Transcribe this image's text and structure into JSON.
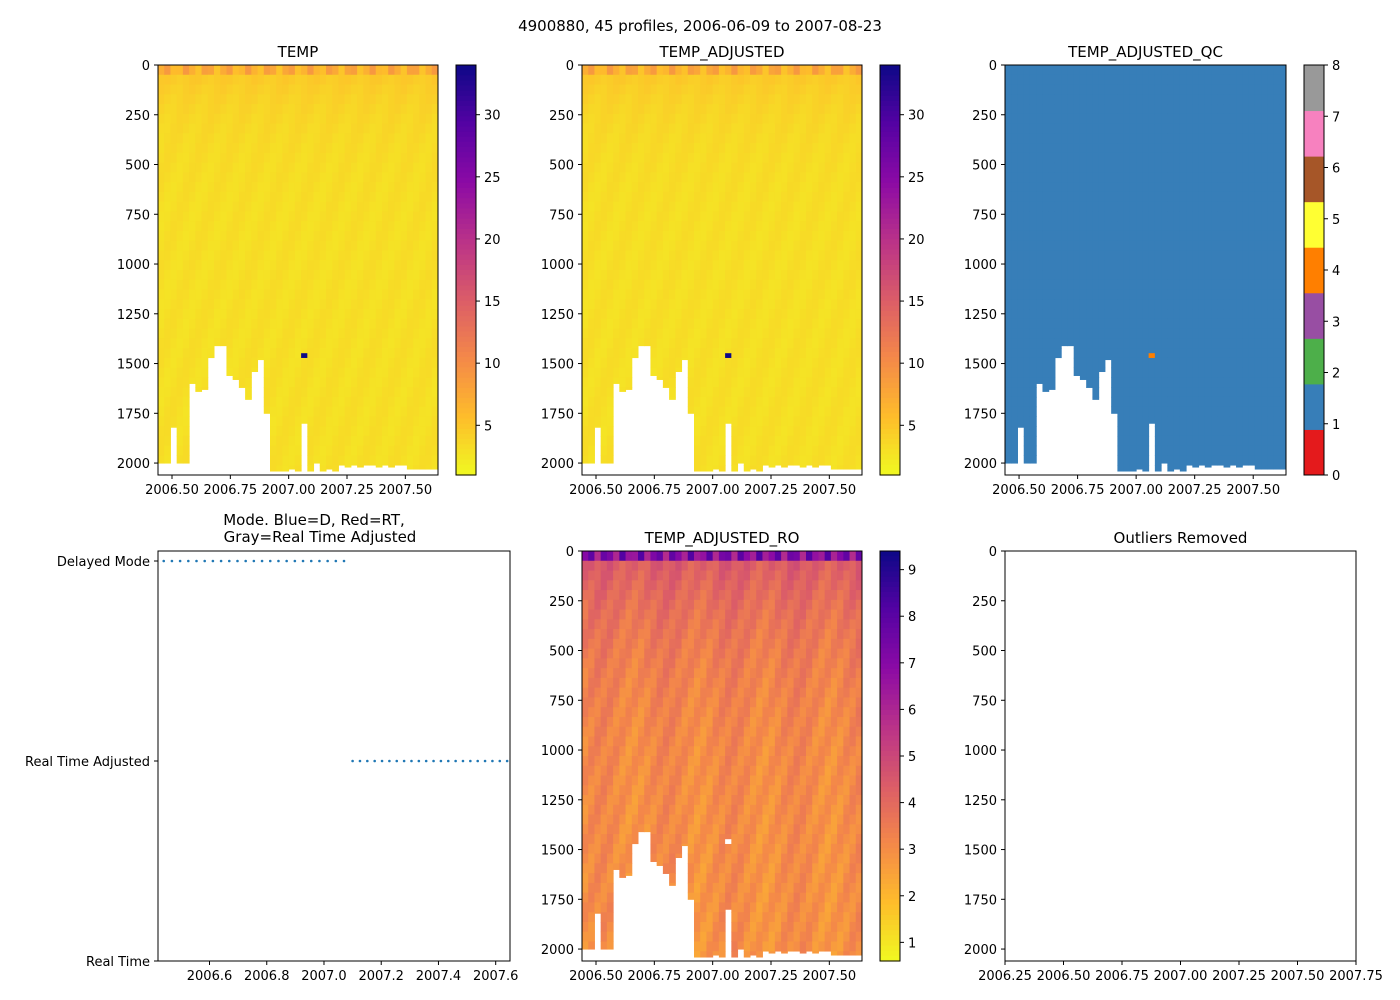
{
  "figure": {
    "title": "4900880, 45 profiles, 2006-06-09 to 2007-08-23"
  },
  "chart_data": [
    {
      "id": "temp",
      "type": "heatmap",
      "title": "TEMP",
      "xlim": [
        2006.44,
        2007.64
      ],
      "ylim": [
        2060,
        0
      ],
      "xticks": [
        2006.5,
        2006.75,
        2007.0,
        2007.25,
        2007.5
      ],
      "xtick_labels": [
        "2006.50",
        "2006.75",
        "2007.00",
        "2007.25",
        "2007.50"
      ],
      "yticks": [
        0,
        250,
        500,
        750,
        1000,
        1250,
        1500,
        1750,
        2000
      ],
      "ytick_labels": [
        "0",
        "250",
        "500",
        "750",
        "1000",
        "1250",
        "1500",
        "1750",
        "2000"
      ],
      "colorbar": {
        "colormap": "plasma_r",
        "range": [
          1,
          34
        ],
        "ticks": [
          5,
          10,
          15,
          20,
          25,
          30
        ],
        "tick_labels": [
          "5",
          "10",
          "15",
          "20",
          "25",
          "30"
        ]
      },
      "profile_bottom_depths": [
        2000,
        2000,
        1820,
        2000,
        2000,
        1600,
        1640,
        1630,
        1470,
        1410,
        1410,
        1560,
        1580,
        1620,
        1680,
        1540,
        1480,
        1750,
        2040,
        2040,
        2040,
        2030,
        2040,
        1800,
        2040,
        2000,
        2040,
        2030,
        2040,
        2010,
        2020,
        2010,
        2020,
        2010,
        2010,
        2020,
        2010,
        2020,
        2010,
        2010,
        2030,
        2030,
        2030,
        2030,
        2030
      ],
      "outlier": {
        "depth": 1460,
        "value": 34,
        "profile_index": 23
      },
      "surface_value": 7,
      "deep_value": 3
    },
    {
      "id": "temp_adj",
      "type": "heatmap",
      "title": "TEMP_ADJUSTED",
      "xlim": [
        2006.44,
        2007.64
      ],
      "ylim": [
        2060,
        0
      ],
      "xticks": [
        2006.5,
        2006.75,
        2007.0,
        2007.25,
        2007.5
      ],
      "xtick_labels": [
        "2006.50",
        "2006.75",
        "2007.00",
        "2007.25",
        "2007.50"
      ],
      "yticks": [
        0,
        250,
        500,
        750,
        1000,
        1250,
        1500,
        1750,
        2000
      ],
      "ytick_labels": [
        "0",
        "250",
        "500",
        "750",
        "1000",
        "1250",
        "1500",
        "1750",
        "2000"
      ],
      "colorbar": {
        "colormap": "plasma_r",
        "range": [
          1,
          34
        ],
        "ticks": [
          5,
          10,
          15,
          20,
          25,
          30
        ],
        "tick_labels": [
          "5",
          "10",
          "15",
          "20",
          "25",
          "30"
        ]
      },
      "outlier": {
        "depth": 1460,
        "value": 34,
        "profile_index": 23
      },
      "surface_value": 7,
      "deep_value": 3
    },
    {
      "id": "qc",
      "type": "heatmap",
      "title": "TEMP_ADJUSTED_QC",
      "xlim": [
        2006.44,
        2007.64
      ],
      "ylim": [
        2060,
        0
      ],
      "xticks": [
        2006.5,
        2006.75,
        2007.0,
        2007.25,
        2007.5
      ],
      "xtick_labels": [
        "2006.50",
        "2006.75",
        "2007.00",
        "2007.25",
        "2007.50"
      ],
      "yticks": [
        0,
        250,
        500,
        750,
        1000,
        1250,
        1500,
        1750,
        2000
      ],
      "ytick_labels": [
        "0",
        "250",
        "500",
        "750",
        "1000",
        "1250",
        "1500",
        "1750",
        "2000"
      ],
      "fill_value": 1,
      "outlier": {
        "depth": 1460,
        "value": 4,
        "profile_index": 23
      },
      "colorbar": {
        "range": [
          0,
          8
        ],
        "ticks": [
          0,
          1,
          2,
          3,
          4,
          5,
          6,
          7,
          8
        ],
        "tick_labels": [
          "0",
          "1",
          "2",
          "3",
          "4",
          "5",
          "6",
          "7",
          "8"
        ],
        "colors": [
          "#e41a1c",
          "#377eb8",
          "#4daf4a",
          "#984ea3",
          "#ff7f00",
          "#ffff33",
          "#a65628",
          "#f781bf",
          "#999999"
        ]
      }
    },
    {
      "id": "mode",
      "type": "scatter",
      "title_lines": [
        "Mode. Blue=D, Red=RT,",
        "Gray=Real Time Adjusted"
      ],
      "xlim": [
        2006.42,
        2007.65
      ],
      "xticks": [
        2006.6,
        2006.8,
        2007.0,
        2007.2,
        2007.4,
        2007.6
      ],
      "xtick_labels": [
        "2006.6",
        "2006.8",
        "2007.0",
        "2007.2",
        "2007.4",
        "2007.6"
      ],
      "ylim": [
        0,
        2.05
      ],
      "yticks": [
        0,
        1,
        2
      ],
      "ytick_labels": [
        "Real Time",
        "Real Time Adjusted",
        "Delayed Mode"
      ],
      "series": [
        {
          "name": "Delayed Mode",
          "y": 2,
          "x_start": 2006.44,
          "x_end": 2007.07,
          "count": 23,
          "color": "#1f77b4"
        },
        {
          "name": "Real Time Adjusted",
          "y": 1,
          "x_start": 2007.1,
          "x_end": 2007.64,
          "count": 22,
          "color": "#1f77b4"
        }
      ]
    },
    {
      "id": "ro",
      "type": "heatmap",
      "title": "TEMP_ADJUSTED_RO",
      "xlim": [
        2006.44,
        2007.64
      ],
      "ylim": [
        2060,
        0
      ],
      "xticks": [
        2006.5,
        2006.75,
        2007.0,
        2007.25,
        2007.5
      ],
      "xtick_labels": [
        "2006.50",
        "2006.75",
        "2007.00",
        "2007.25",
        "2007.50"
      ],
      "yticks": [
        0,
        250,
        500,
        750,
        1000,
        1250,
        1500,
        1750,
        2000
      ],
      "ytick_labels": [
        "0",
        "250",
        "500",
        "750",
        "1000",
        "1250",
        "1500",
        "1750",
        "2000"
      ],
      "colorbar": {
        "colormap": "plasma_r",
        "range": [
          0.6,
          9.4
        ],
        "ticks": [
          1,
          2,
          3,
          4,
          5,
          6,
          7,
          8,
          9
        ],
        "tick_labels": [
          "1",
          "2",
          "3",
          "4",
          "5",
          "6",
          "7",
          "8",
          "9"
        ]
      },
      "removed_cell": {
        "depth": 1460,
        "profile_index": 23
      },
      "surface_value": 7,
      "upper_value": 4.6,
      "deep_value": 2.9
    },
    {
      "id": "outliers",
      "type": "scatter",
      "title": "Outliers Removed",
      "xlim": [
        2006.25,
        2007.75
      ],
      "ylim": [
        2060,
        0
      ],
      "xticks": [
        2006.25,
        2006.5,
        2006.75,
        2007.0,
        2007.25,
        2007.5,
        2007.75
      ],
      "xtick_labels": [
        "2006.25",
        "2006.50",
        "2006.75",
        "2007.00",
        "2007.25",
        "2007.50",
        "2007.75"
      ],
      "yticks": [
        0,
        250,
        500,
        750,
        1000,
        1250,
        1500,
        1750,
        2000
      ],
      "ytick_labels": [
        "0",
        "250",
        "500",
        "750",
        "1000",
        "1250",
        "1500",
        "1750",
        "2000"
      ],
      "points": []
    }
  ]
}
